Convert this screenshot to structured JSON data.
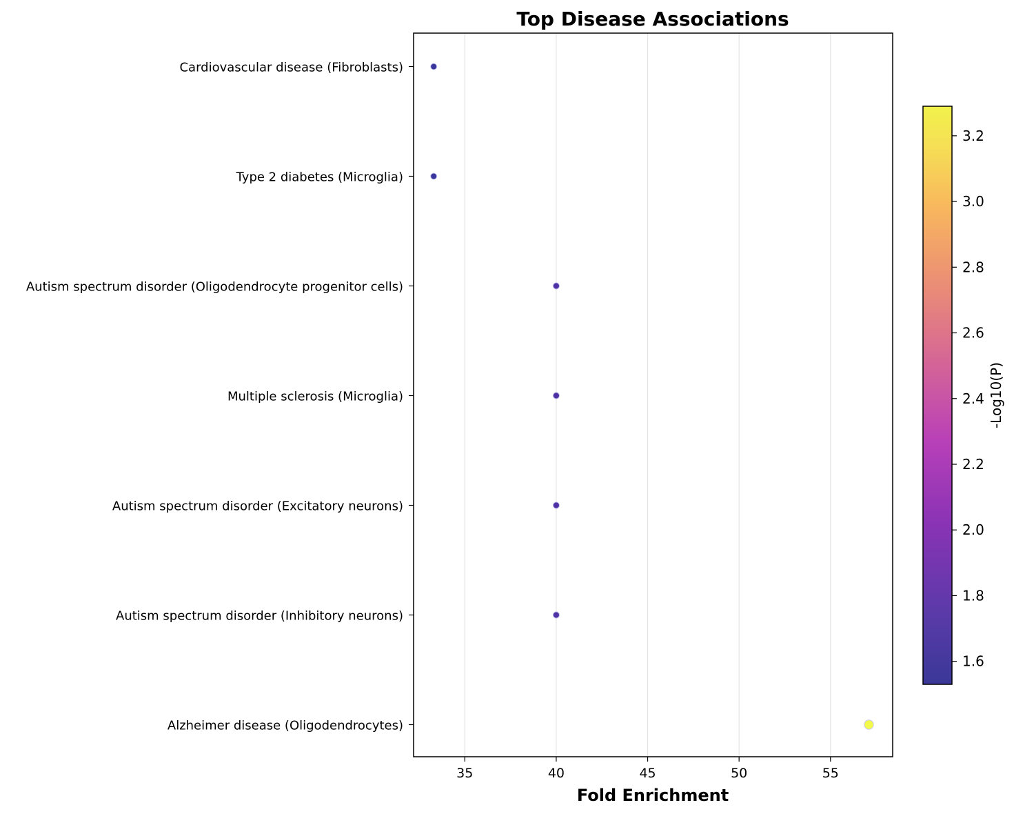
{
  "chart_data": {
    "type": "scatter",
    "title": "Top Disease Associations",
    "xlabel": "Fold Enrichment",
    "ylabel": "",
    "xlim": [
      32.2,
      58.4
    ],
    "xticks": [
      35,
      40,
      45,
      50,
      55
    ],
    "grid": "vertical",
    "categories": [
      "Cardiovascular disease (Fibroblasts)",
      "Type 2 diabetes (Microglia)",
      "Autism spectrum disorder (Oligodendrocyte progenitor cells)",
      "Multiple sclerosis (Microglia)",
      "Autism spectrum disorder (Excitatory neurons)",
      "Autism spectrum disorder (Inhibitory neurons)",
      "Alzheimer disease (Oligodendrocytes)"
    ],
    "points": [
      {
        "category": "Cardiovascular disease (Fibroblasts)",
        "x": 33.3,
        "color_value": 1.53
      },
      {
        "category": "Type 2 diabetes (Microglia)",
        "x": 33.3,
        "color_value": 1.53
      },
      {
        "category": "Autism spectrum disorder (Oligodendrocyte progenitor cells)",
        "x": 40.0,
        "color_value": 1.63
      },
      {
        "category": "Multiple sclerosis (Microglia)",
        "x": 40.0,
        "color_value": 1.63
      },
      {
        "category": "Autism spectrum disorder (Excitatory neurons)",
        "x": 40.0,
        "color_value": 1.63
      },
      {
        "category": "Autism spectrum disorder (Inhibitory neurons)",
        "x": 40.0,
        "color_value": 1.63
      },
      {
        "category": "Alzheimer disease (Oligodendrocytes)",
        "x": 57.1,
        "color_value": 3.29
      }
    ],
    "colorbar": {
      "label": "-Log10(P)",
      "colormap": "plasma",
      "range": [
        1.53,
        3.29
      ],
      "ticks": [
        1.6,
        1.8,
        2.0,
        2.2,
        2.4,
        2.6,
        2.8,
        3.0,
        3.2
      ]
    }
  }
}
